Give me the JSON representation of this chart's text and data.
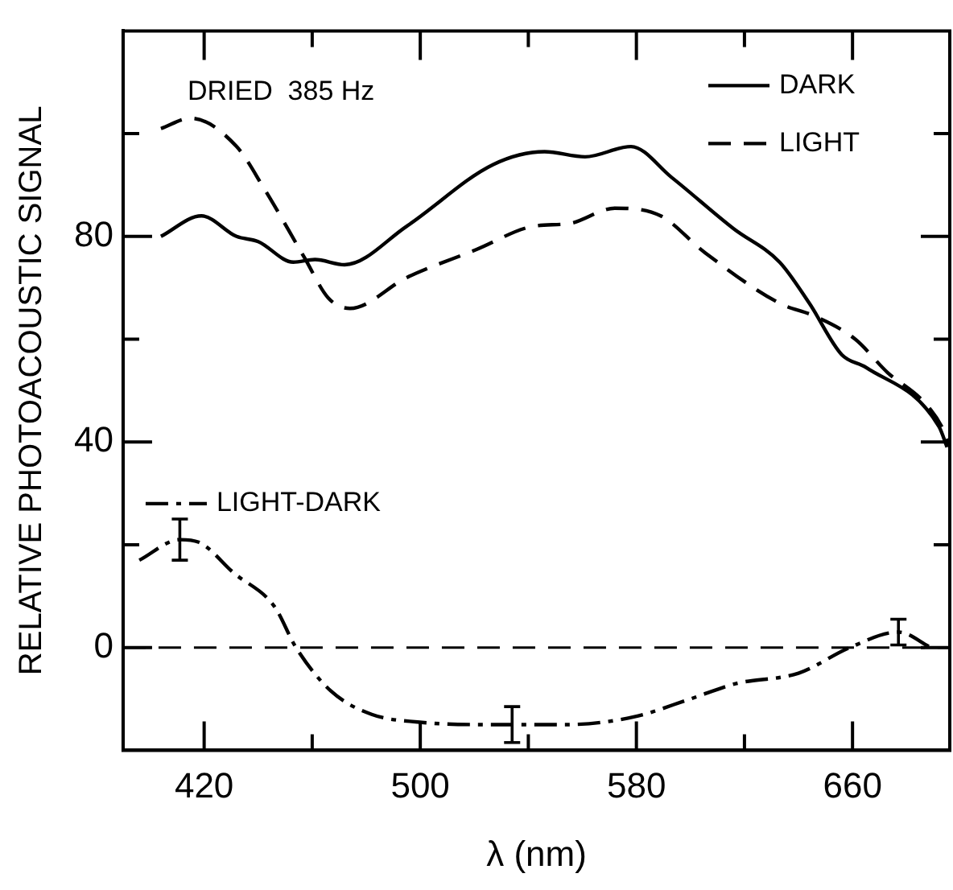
{
  "chart_data": {
    "type": "line",
    "xlabel": "λ (nm)",
    "ylabel": "RELATIVE PHOTOACOUSTIC SIGNAL",
    "annotations": [
      "DRIED  385 Hz"
    ],
    "xlim": [
      390,
      696
    ],
    "xticks": [
      420,
      {
        "value": 460,
        "label": null
      },
      500,
      {
        "value": 540,
        "label": null
      },
      580,
      {
        "value": 620,
        "label": null
      },
      660
    ],
    "ylim": [
      -20,
      120
    ],
    "yticks": [
      0,
      {
        "value": 20,
        "label": null
      },
      40,
      {
        "value": 60,
        "label": null
      },
      80,
      {
        "value": 100,
        "label": null
      }
    ],
    "grid": false,
    "legend": "top right",
    "marker": "none",
    "ref_lines": [
      {
        "axis": "y",
        "value": 0,
        "color": "#000000",
        "line_style": "dashed"
      }
    ],
    "series": [
      {
        "name": "DARK",
        "color": "#000000",
        "line_style": "solid",
        "x": [
          404,
          419,
          432,
          440,
          453,
          461,
          472,
          495,
          527,
          546,
          561,
          578,
          593,
          616,
          633,
          644,
          656,
          665,
          692,
          695
        ],
        "values": [
          80,
          84,
          80,
          79,
          75,
          75.5,
          74.5,
          82,
          94,
          96.5,
          95.5,
          97.5,
          91.5,
          81.5,
          75,
          67,
          57,
          54.5,
          43,
          39
        ]
      },
      {
        "name": "LIGHT",
        "color": "#000000",
        "line_style": "dashed",
        "x": [
          404,
          415,
          432,
          442,
          457,
          466,
          474,
          495,
          521,
          542,
          555,
          572,
          589,
          605,
          633,
          646,
          661,
          673,
          686,
          693,
          696
        ],
        "values": [
          101,
          103,
          97.5,
          89.5,
          76,
          68,
          66,
          72,
          77.5,
          82,
          82.5,
          85.5,
          84,
          77,
          67,
          64.5,
          60,
          53.5,
          48,
          43,
          39
        ]
      },
      {
        "name": "LIGHT-DARK",
        "color": "#000000",
        "line_style": "dashdot",
        "x": [
          396,
          411,
          418,
          431,
          446,
          454,
          467,
          482,
          499,
          526,
          534,
          554,
          579,
          600,
          617,
          640,
          659,
          677,
          689
        ],
        "values": [
          17,
          21,
          20.5,
          14.5,
          8,
          0,
          -8.5,
          -13,
          -14.5,
          -15,
          -15,
          -15,
          -13.5,
          -10,
          -7,
          -5,
          0,
          3,
          0
        ],
        "errors": [
          null,
          4,
          null,
          null,
          null,
          null,
          null,
          null,
          null,
          null,
          3.5,
          null,
          null,
          null,
          null,
          null,
          null,
          2.5,
          null
        ]
      }
    ]
  }
}
